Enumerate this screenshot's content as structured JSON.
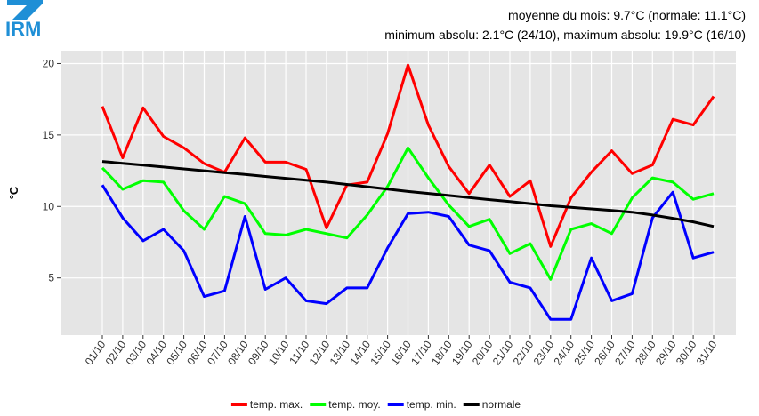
{
  "logo_text": "IRM",
  "chart_data": {
    "type": "line",
    "annotations": [
      "moyenne du mois: 9.7°C (normale: 11.1°C)",
      "minimum absolu: 2.1°C (24/10), maximum absolu: 19.9°C (16/10)"
    ],
    "y_label": "°C",
    "categories": [
      "01/10",
      "02/10",
      "03/10",
      "04/10",
      "05/10",
      "06/10",
      "07/10",
      "08/10",
      "09/10",
      "10/10",
      "11/10",
      "12/10",
      "13/10",
      "14/10",
      "15/10",
      "16/10",
      "17/10",
      "18/10",
      "19/10",
      "20/10",
      "21/10",
      "22/10",
      "23/10",
      "24/10",
      "25/10",
      "26/10",
      "27/10",
      "28/10",
      "29/10",
      "30/10",
      "31/10"
    ],
    "series": [
      {
        "name": "temp. max.",
        "color": "#ff0000",
        "values": [
          17.0,
          13.4,
          16.9,
          14.9,
          14.1,
          13.0,
          12.4,
          14.8,
          13.1,
          13.1,
          12.6,
          8.5,
          11.5,
          11.7,
          15.1,
          19.9,
          15.7,
          12.8,
          10.9,
          12.9,
          10.7,
          11.8,
          7.2,
          10.6,
          12.4,
          13.9,
          12.3,
          12.9,
          16.1,
          15.7,
          17.7
        ]
      },
      {
        "name": "temp. moy.",
        "color": "#00ff00",
        "values": [
          12.7,
          11.2,
          11.8,
          11.7,
          9.7,
          8.4,
          10.7,
          10.2,
          8.1,
          8.0,
          8.4,
          8.1,
          7.8,
          9.4,
          11.4,
          14.1,
          12.0,
          10.1,
          8.6,
          9.1,
          6.7,
          7.4,
          4.9,
          8.4,
          8.8,
          8.1,
          10.6,
          12.0,
          11.7,
          10.5,
          10.9
        ]
      },
      {
        "name": "temp. min.",
        "color": "#0000ff",
        "values": [
          11.5,
          9.2,
          7.6,
          8.4,
          6.9,
          3.7,
          4.1,
          9.3,
          4.2,
          5.0,
          3.4,
          3.2,
          4.3,
          4.3,
          7.1,
          9.5,
          9.6,
          9.3,
          7.3,
          6.9,
          4.7,
          4.3,
          2.1,
          2.1,
          6.4,
          3.4,
          3.9,
          9.2,
          11.0,
          6.4,
          6.8
        ]
      },
      {
        "name": "normale",
        "color": "#000000",
        "values": [
          13.15,
          13.02,
          12.89,
          12.76,
          12.63,
          12.5,
          12.37,
          12.24,
          12.1,
          11.97,
          11.84,
          11.7,
          11.54,
          11.38,
          11.22,
          11.05,
          10.91,
          10.77,
          10.62,
          10.48,
          10.34,
          10.2,
          10.05,
          9.94,
          9.83,
          9.72,
          9.6,
          9.4,
          9.17,
          8.92,
          8.6
        ]
      }
    ],
    "ylim": [
      1.0,
      20.9
    ],
    "yticks": [
      5,
      10,
      15,
      20
    ],
    "grid": true,
    "legend": "bottom"
  }
}
